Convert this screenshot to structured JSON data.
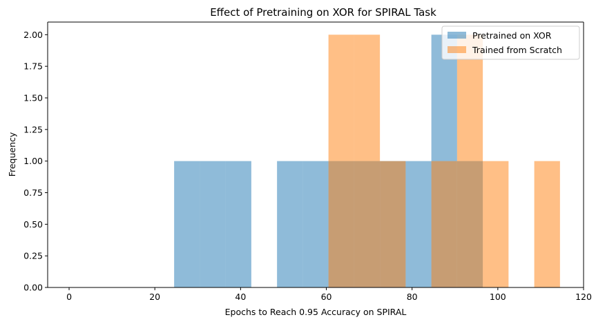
{
  "chart_data": {
    "type": "bar",
    "title": "Effect of Pretraining on XOR for SPIRAL Task",
    "xlabel": "Epochs to Reach 0.95 Accuracy on SPIRAL",
    "ylabel": "Frequency",
    "xlim": [
      -5,
      120
    ],
    "ylim": [
      0,
      2.1
    ],
    "xticks": [
      0,
      20,
      40,
      60,
      80,
      100,
      120
    ],
    "yticks": [
      "0.00",
      "0.25",
      "0.50",
      "0.75",
      "1.00",
      "1.25",
      "1.50",
      "1.75",
      "2.00"
    ],
    "grid": false,
    "legend_position": "top-right",
    "series": [
      {
        "name": "Pretrained on XOR",
        "color": "#1f77b4",
        "opacity": 0.5,
        "bins": [
          {
            "x0": 24.5,
            "x1": 30.5,
            "count": 1
          },
          {
            "x0": 30.5,
            "x1": 36.5,
            "count": 1
          },
          {
            "x0": 36.5,
            "x1": 42.5,
            "count": 1
          },
          {
            "x0": 48.5,
            "x1": 54.5,
            "count": 1
          },
          {
            "x0": 54.5,
            "x1": 60.5,
            "count": 1
          },
          {
            "x0": 60.5,
            "x1": 66.5,
            "count": 1
          },
          {
            "x0": 66.5,
            "x1": 72.5,
            "count": 1
          },
          {
            "x0": 72.5,
            "x1": 78.5,
            "count": 1
          },
          {
            "x0": 78.5,
            "x1": 84.5,
            "count": 1
          },
          {
            "x0": 84.5,
            "x1": 90.5,
            "count": 2
          },
          {
            "x0": 90.5,
            "x1": 96.5,
            "count": 1
          }
        ]
      },
      {
        "name": "Trained from Scratch",
        "color": "#ff7f0e",
        "opacity": 0.5,
        "bins": [
          {
            "x0": 60.5,
            "x1": 66.5,
            "count": 2
          },
          {
            "x0": 66.5,
            "x1": 72.5,
            "count": 2
          },
          {
            "x0": 72.5,
            "x1": 78.5,
            "count": 1
          },
          {
            "x0": 84.5,
            "x1": 90.5,
            "count": 1
          },
          {
            "x0": 90.5,
            "x1": 96.5,
            "count": 2
          },
          {
            "x0": 96.5,
            "x1": 102.5,
            "count": 1
          },
          {
            "x0": 108.5,
            "x1": 114.5,
            "count": 1
          }
        ]
      }
    ]
  }
}
